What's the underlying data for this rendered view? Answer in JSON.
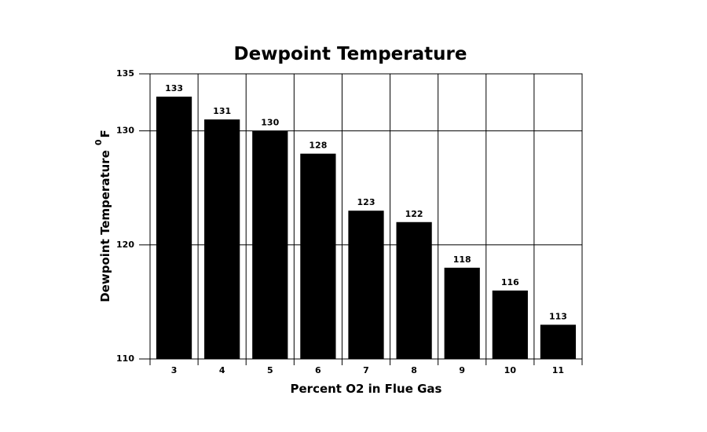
{
  "chart_data": {
    "type": "bar",
    "title": "Dewpoint Temperature",
    "y_label": "Dewpoint Temperature",
    "y_label_degree": "0",
    "y_label_unit": "F",
    "x_label": "Percent O2 in Flue Gas",
    "categories": [
      "3",
      "4",
      "5",
      "6",
      "7",
      "8",
      "9",
      "10",
      "11"
    ],
    "values": [
      133,
      131,
      130,
      128,
      123,
      122,
      118,
      116,
      113
    ],
    "color": "#000000",
    "ylim": [
      110,
      135
    ],
    "yticks": [
      110,
      120,
      130,
      135
    ],
    "grid": true
  }
}
